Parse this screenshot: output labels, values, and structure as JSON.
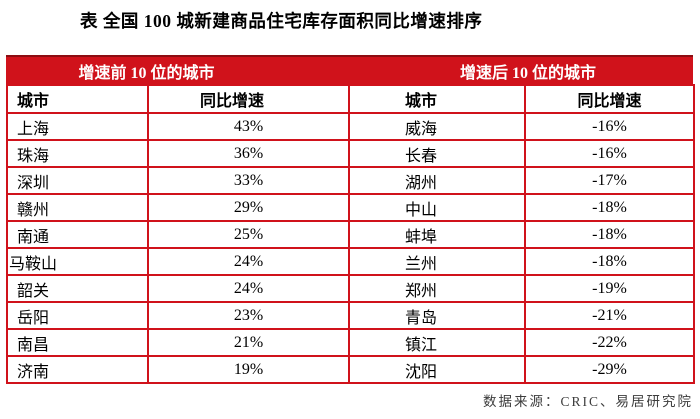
{
  "title": "表 全国 100 城新建商品住宅库存面积同比增速排序",
  "sections": {
    "left_header": "增速前 10 位的城市",
    "right_header": "增速后 10 位的城市"
  },
  "columns": {
    "city": "城市",
    "yoy_growth": "同比增速"
  },
  "table": {
    "top10": [
      {
        "city": "上海",
        "growth": "43%"
      },
      {
        "city": "珠海",
        "growth": "36%"
      },
      {
        "city": "深圳",
        "growth": "33%"
      },
      {
        "city": "赣州",
        "growth": "29%"
      },
      {
        "city": "南通",
        "growth": "25%"
      },
      {
        "city": "马鞍山",
        "growth": "24%"
      },
      {
        "city": "韶关",
        "growth": "24%"
      },
      {
        "city": "岳阳",
        "growth": "23%"
      },
      {
        "city": "南昌",
        "growth": "21%"
      },
      {
        "city": "济南",
        "growth": "19%"
      }
    ],
    "bottom10": [
      {
        "city": "威海",
        "growth": "-16%"
      },
      {
        "city": "长春",
        "growth": "-16%"
      },
      {
        "city": "湖州",
        "growth": "-17%"
      },
      {
        "city": "中山",
        "growth": "-18%"
      },
      {
        "city": "蚌埠",
        "growth": "-18%"
      },
      {
        "city": "兰州",
        "growth": "-18%"
      },
      {
        "city": "郑州",
        "growth": "-19%"
      },
      {
        "city": "青岛",
        "growth": "-21%"
      },
      {
        "city": "镇江",
        "growth": "-22%"
      },
      {
        "city": "沈阳",
        "growth": "-29%"
      }
    ]
  },
  "footer": {
    "source": "数据来源：CRIC、易居研究院"
  },
  "colors": {
    "accent_red": "#D0121B",
    "band_top_edge": "#8C0D12",
    "footer_text": "#3C3C3C"
  }
}
